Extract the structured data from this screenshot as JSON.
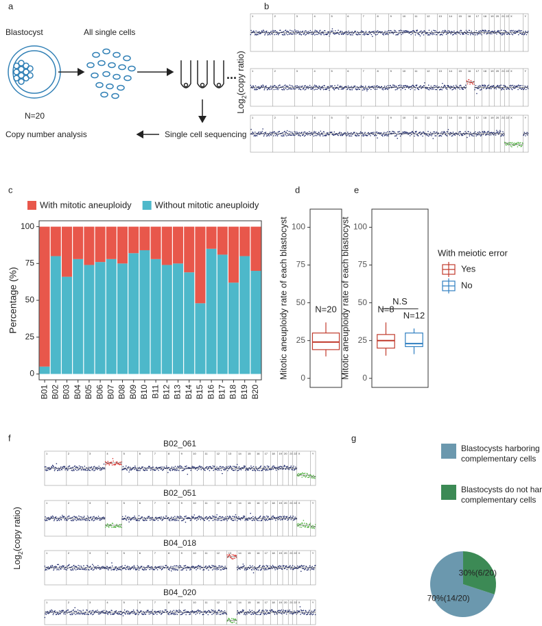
{
  "panel_labels": [
    "a",
    "b",
    "c",
    "d",
    "e",
    "f",
    "g"
  ],
  "diagram": {
    "blastocyst": "Blastocyst",
    "n": "N=20",
    "cells": "All single cells",
    "dots": "...",
    "sequencing": "Single cell sequencing",
    "analysis": "Copy number analysis"
  },
  "cnv": {
    "ylabel": [
      "Log",
      "2",
      "(copy ratio)"
    ],
    "chromosomes": [
      "1",
      "2",
      "3",
      "4",
      "5",
      "6",
      "7",
      "8",
      "9",
      "10",
      "11",
      "12",
      "13",
      "14",
      "15",
      "16",
      "17",
      "18",
      "19",
      "20",
      "21",
      "22",
      "X",
      "Y"
    ],
    "samples": [
      "B02_061",
      "B02_051",
      "B04_018",
      "B04_020"
    ]
  },
  "chart_data": [
    {
      "type": "stacked-bar",
      "ylabel": "Percentage (%)",
      "categories": [
        "B01",
        "B02",
        "B03",
        "B04",
        "B05",
        "B06",
        "B07",
        "B08",
        "B09",
        "B10",
        "B11",
        "B12",
        "B13",
        "B14",
        "B15",
        "B16",
        "B17",
        "B18",
        "B19",
        "B20"
      ],
      "series": [
        {
          "name": "Without mitotic aneuploidy",
          "color": "#4db8ca",
          "values": [
            5,
            80,
            66,
            78,
            74,
            76,
            78,
            75,
            82,
            84,
            78,
            74,
            75,
            69,
            48,
            85,
            81,
            62,
            80,
            70
          ]
        },
        {
          "name": "With mitotic aneuploidy",
          "color": "#e8574b",
          "values": [
            95,
            20,
            34,
            22,
            26,
            24,
            22,
            25,
            18,
            16,
            22,
            26,
            25,
            31,
            52,
            15,
            19,
            38,
            20,
            30
          ]
        }
      ],
      "legend_order": [
        1,
        0
      ],
      "ylim": [
        -4,
        104
      ],
      "yticks": [
        0,
        25,
        50,
        75,
        100
      ]
    },
    {
      "type": "box",
      "ylabel": "Mitotic aneuploidy rate of each blastocyst",
      "ylim": [
        -6,
        112
      ],
      "yticks": [
        0,
        25,
        50,
        75,
        100
      ],
      "boxes": [
        {
          "color": "#c0392b",
          "min": 14.5,
          "q1": 19,
          "median": 24,
          "q3": 30,
          "max": 37,
          "label": "N=20"
        }
      ]
    },
    {
      "type": "box",
      "ylabel": "Mitotic aneuploidy rate of each blastocyst",
      "ylim": [
        -6,
        112
      ],
      "yticks": [
        0,
        25,
        50,
        75,
        100
      ],
      "annotation": "N.S",
      "legend_title": "With meiotic error",
      "boxes": [
        {
          "name": "Yes",
          "color": "#c0392b",
          "min": 15,
          "q1": 20,
          "median": 25,
          "q3": 29,
          "max": 37,
          "label": "N=8"
        },
        {
          "name": "No",
          "color": "#2f7fc1",
          "min": 16,
          "q1": 21,
          "median": 23,
          "q3": 30,
          "max": 33,
          "label": "N=12"
        }
      ]
    },
    {
      "type": "pie",
      "categories": [
        "Blastocysts harboring complementary cells",
        "Blastocysts do not harbor complementary cells"
      ],
      "values": [
        70,
        30
      ],
      "value_labels": [
        "70%(14/20)",
        "30%(6/20)"
      ],
      "colors": [
        "#6b98ae",
        "#3c8a55"
      ]
    }
  ]
}
